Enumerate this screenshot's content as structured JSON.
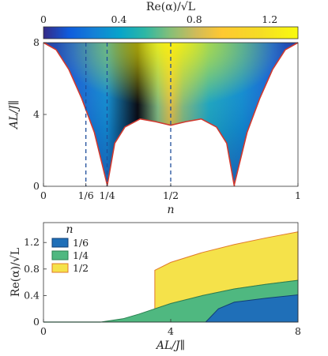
{
  "colorbar": {
    "title": "Re(α)/√L",
    "ticks": [
      {
        "value": 0,
        "label": "0"
      },
      {
        "value": 0.4,
        "label": "0.4"
      },
      {
        "value": 0.8,
        "label": "0.8"
      },
      {
        "value": 1.2,
        "label": "1.2"
      }
    ],
    "range": [
      0,
      1.35
    ]
  },
  "chart_data": [
    {
      "type": "heatmap",
      "xlabel": "n",
      "ylabel": "AL/J∥",
      "xlim": [
        0,
        1
      ],
      "ylim": [
        0,
        8
      ],
      "xticks": [
        {
          "value": 0,
          "label": "0"
        },
        {
          "value": 0.1667,
          "label": "1/6"
        },
        {
          "value": 0.25,
          "label": "1/4"
        },
        {
          "value": 0.5,
          "label": "1/2"
        },
        {
          "value": 1,
          "label": "1"
        }
      ],
      "yticks": [
        {
          "value": 0,
          "label": "0"
        },
        {
          "value": 4,
          "label": "4"
        },
        {
          "value": 8,
          "label": "8"
        }
      ],
      "dashed_lines_at_n": [
        0.1667,
        0.25,
        0.5
      ],
      "outer_boundary": {
        "n": [
          0.0,
          0.05,
          0.1,
          0.15,
          0.2,
          0.25
        ],
        "AL_over_J": [
          8.0,
          7.6,
          6.5,
          4.9,
          3.0,
          0.1
        ]
      },
      "inner_boundary": {
        "n": [
          0.25,
          0.28,
          0.32,
          0.38,
          0.44,
          0.5,
          0.56,
          0.62,
          0.68,
          0.72,
          0.75
        ],
        "AL_over_J": [
          0.0,
          2.4,
          3.3,
          3.75,
          3.6,
          3.4,
          3.6,
          3.75,
          3.3,
          2.4,
          0.0
        ]
      },
      "colorscale": "parula",
      "peak": {
        "n": 0.5,
        "AL_over_J": 8,
        "value": 1.35
      }
    },
    {
      "type": "area",
      "xlabel": "AL/J∥",
      "ylabel": "Re(α)/√L",
      "xlim": [
        0,
        8
      ],
      "ylim": [
        0,
        1.5
      ],
      "xticks": [
        0,
        4,
        8
      ],
      "yticks": [
        0,
        0.4,
        0.8,
        1.2
      ],
      "legend": {
        "title": "n",
        "position": "top-left"
      },
      "series": [
        {
          "name": "1/2",
          "color": "#f5e24a",
          "x": [
            3.5,
            3.5,
            4.0,
            5.0,
            6.0,
            7.0,
            8.0
          ],
          "upper": [
            0.0,
            0.78,
            0.9,
            1.05,
            1.17,
            1.27,
            1.36
          ],
          "lower_follows": "1/4"
        },
        {
          "name": "1/4",
          "color": "#4fb880",
          "x": [
            0,
            1.8,
            2.5,
            3.0,
            3.5,
            4.0,
            5.0,
            6.0,
            7.0,
            8.0
          ],
          "upper": [
            0.0,
            0.0,
            0.05,
            0.12,
            0.2,
            0.28,
            0.4,
            0.5,
            0.57,
            0.63
          ]
        },
        {
          "name": "1/6",
          "color": "#1f6fb8",
          "x": [
            5.1,
            5.5,
            6.0,
            7.0,
            8.0
          ],
          "upper": [
            0.0,
            0.2,
            0.3,
            0.36,
            0.41
          ]
        }
      ]
    }
  ]
}
